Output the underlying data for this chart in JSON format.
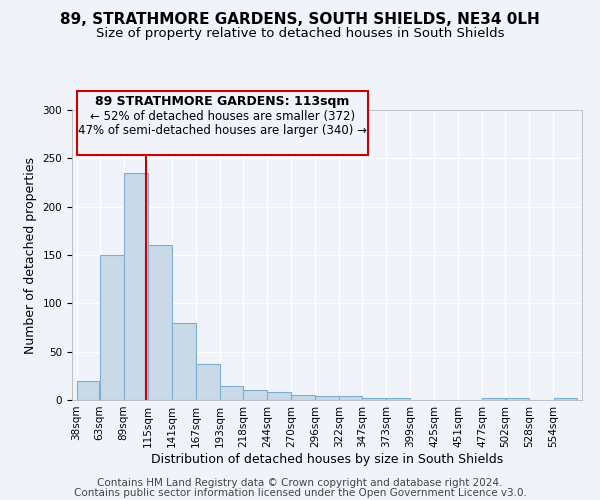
{
  "title": "89, STRATHMORE GARDENS, SOUTH SHIELDS, NE34 0LH",
  "subtitle": "Size of property relative to detached houses in South Shields",
  "xlabel": "Distribution of detached houses by size in South Shields",
  "ylabel": "Number of detached properties",
  "footer1": "Contains HM Land Registry data © Crown copyright and database right 2024.",
  "footer2": "Contains public sector information licensed under the Open Government Licence v3.0.",
  "annotation_line1": "89 STRATHMORE GARDENS: 113sqm",
  "annotation_line2": "← 52% of detached houses are smaller (372)",
  "annotation_line3": "47% of semi-detached houses are larger (340) →",
  "bar_edges": [
    38,
    63,
    89,
    115,
    141,
    167,
    193,
    218,
    244,
    270,
    296,
    322,
    347,
    373,
    399,
    425,
    451,
    477,
    502,
    528,
    554,
    580
  ],
  "bar_heights": [
    20,
    150,
    235,
    160,
    80,
    37,
    15,
    10,
    8,
    5,
    4,
    4,
    2,
    2,
    0,
    0,
    0,
    2,
    2,
    0,
    2
  ],
  "bar_color": "#c9d9e8",
  "bar_edge_color": "#7bafd4",
  "red_line_x": 113,
  "red_line_color": "#cc0000",
  "annotation_box_color": "#cc0000",
  "background_color": "#f0f4fa",
  "tick_labels": [
    "38sqm",
    "63sqm",
    "89sqm",
    "115sqm",
    "141sqm",
    "167sqm",
    "193sqm",
    "218sqm",
    "244sqm",
    "270sqm",
    "296sqm",
    "322sqm",
    "347sqm",
    "373sqm",
    "399sqm",
    "425sqm",
    "451sqm",
    "477sqm",
    "502sqm",
    "528sqm",
    "554sqm"
  ],
  "ylim": [
    0,
    300
  ],
  "yticks": [
    0,
    50,
    100,
    150,
    200,
    250,
    300
  ],
  "grid_color": "#ffffff",
  "title_fontsize": 11,
  "subtitle_fontsize": 9.5,
  "axis_label_fontsize": 9,
  "tick_fontsize": 7.5,
  "footer_fontsize": 7.5,
  "ann_fontsize1": 9,
  "ann_fontsize2": 8.5
}
